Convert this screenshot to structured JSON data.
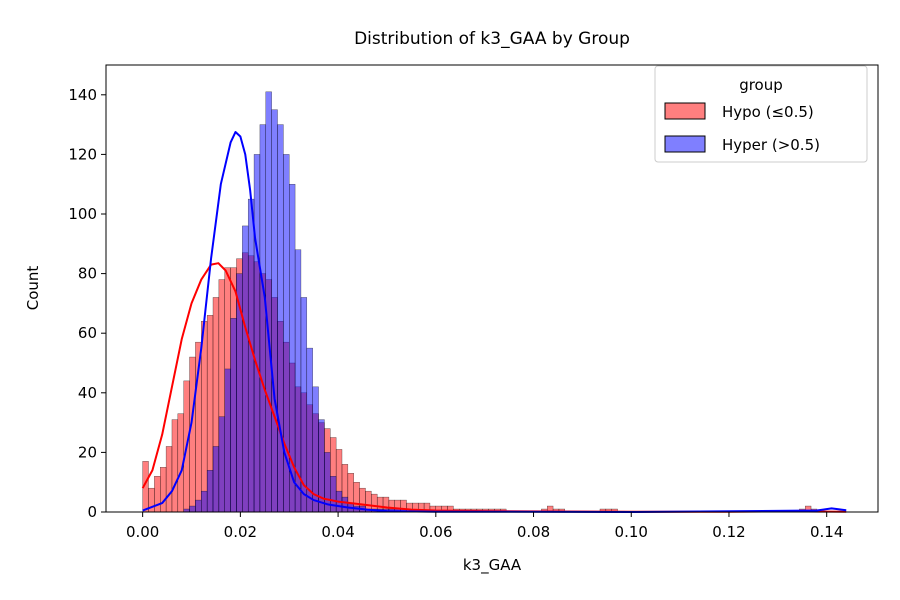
{
  "chart_data": {
    "type": "histogram",
    "title": "Distribution of k3_GAA by Group",
    "xlabel": "k3_GAA",
    "ylabel": "Count",
    "xlim": [
      -0.0075,
      0.1505
    ],
    "ylim": [
      0,
      150
    ],
    "xticks": [
      "0.00",
      "0.02",
      "0.04",
      "0.06",
      "0.08",
      "0.10",
      "0.12",
      "0.14"
    ],
    "xtick_values": [
      0,
      0.02,
      0.04,
      0.06,
      0.08,
      0.1,
      0.12,
      0.14
    ],
    "yticks": [
      "0",
      "20",
      "40",
      "60",
      "80",
      "100",
      "120",
      "140"
    ],
    "ytick_values": [
      0,
      20,
      40,
      60,
      80,
      100,
      120,
      140
    ],
    "bin_start": 0.0,
    "bin_width": 0.0012,
    "legend": {
      "title": "group",
      "position": "top-right",
      "entries": [
        "Hypo (≤0.5)",
        "Hyper (>0.5)"
      ]
    },
    "series": [
      {
        "name": "Hypo (≤0.5)",
        "bar_color": "#ff0000",
        "kde_color": "#ff0000",
        "counts": [
          17,
          8,
          12,
          15,
          22,
          31,
          33,
          44,
          52,
          57,
          64,
          66,
          72,
          78,
          82,
          82,
          85,
          87,
          86,
          84,
          80,
          78,
          72,
          64,
          57,
          50,
          42,
          40,
          36,
          33,
          30,
          28,
          25,
          21,
          16,
          13,
          10,
          8,
          7,
          6,
          5,
          5,
          4,
          4,
          4,
          3,
          3,
          3,
          3,
          2,
          2,
          2,
          2,
          1,
          1,
          1,
          1,
          1,
          1,
          1,
          1,
          1,
          0,
          0,
          0,
          0,
          0,
          0,
          1,
          2,
          1,
          1,
          0,
          0,
          0,
          0,
          0,
          0,
          1,
          1,
          1,
          0,
          0,
          0,
          0,
          0,
          0,
          0,
          0,
          0,
          0,
          0,
          0,
          0,
          0,
          0,
          0,
          0,
          0,
          0,
          0,
          0,
          0,
          0,
          0,
          0,
          0,
          0,
          0,
          0,
          0,
          0,
          1,
          2,
          1,
          0,
          0,
          0,
          0,
          0,
          0
        ],
        "kde": [
          [
            0,
            8
          ],
          [
            0.002,
            14
          ],
          [
            0.004,
            26
          ],
          [
            0.006,
            42
          ],
          [
            0.008,
            58
          ],
          [
            0.01,
            70
          ],
          [
            0.012,
            78
          ],
          [
            0.014,
            83
          ],
          [
            0.0155,
            83.5
          ],
          [
            0.017,
            81
          ],
          [
            0.019,
            74
          ],
          [
            0.021,
            62
          ],
          [
            0.023,
            51
          ],
          [
            0.025,
            41
          ],
          [
            0.027,
            32
          ],
          [
            0.029,
            23
          ],
          [
            0.031,
            15
          ],
          [
            0.033,
            9
          ],
          [
            0.035,
            6
          ],
          [
            0.037,
            4.5
          ],
          [
            0.04,
            3.5
          ],
          [
            0.045,
            2.5
          ],
          [
            0.05,
            1.5
          ],
          [
            0.055,
            0.8
          ],
          [
            0.06,
            0.5
          ],
          [
            0.07,
            0.3
          ],
          [
            0.08,
            0.2
          ],
          [
            0.1,
            0.1
          ],
          [
            0.12,
            0.1
          ],
          [
            0.132,
            0.2
          ],
          [
            0.144,
            0.1
          ]
        ]
      },
      {
        "name": "Hyper (>0.5)",
        "bar_color": "#0000ff",
        "kde_color": "#0000ff",
        "counts": [
          0,
          0,
          0,
          0,
          0,
          0,
          0,
          1,
          2,
          4,
          7,
          14,
          22,
          32,
          48,
          65,
          80,
          96,
          105,
          120,
          130,
          141,
          135,
          130,
          120,
          110,
          88,
          72,
          55,
          42,
          31,
          20,
          12,
          7,
          5,
          3,
          2,
          2,
          1,
          1,
          1,
          1,
          1,
          1,
          1,
          0,
          0,
          0,
          0,
          0,
          0,
          0,
          0,
          0,
          0,
          0,
          0,
          0,
          0,
          0,
          0,
          0,
          0,
          0,
          0,
          0,
          0,
          0,
          0,
          0,
          0,
          0,
          0,
          0,
          0,
          0,
          0,
          0,
          0,
          0,
          0,
          0,
          0,
          0,
          0,
          0,
          0,
          0,
          0,
          0,
          0,
          0,
          0,
          0,
          0,
          0,
          0,
          0,
          0,
          0,
          0,
          0,
          0,
          0,
          0,
          0,
          0,
          0,
          0,
          0,
          0,
          0,
          0,
          0,
          0,
          0,
          0,
          0,
          0,
          0
        ],
        "kde": [
          [
            0,
            0.5
          ],
          [
            0.004,
            3
          ],
          [
            0.006,
            7
          ],
          [
            0.008,
            14
          ],
          [
            0.01,
            30
          ],
          [
            0.012,
            55
          ],
          [
            0.014,
            85
          ],
          [
            0.016,
            110
          ],
          [
            0.018,
            124
          ],
          [
            0.019,
            127.5
          ],
          [
            0.02,
            126
          ],
          [
            0.021,
            120
          ],
          [
            0.022,
            108
          ],
          [
            0.023,
            92
          ],
          [
            0.025,
            72
          ],
          [
            0.026,
            55
          ],
          [
            0.027,
            38
          ],
          [
            0.029,
            20
          ],
          [
            0.031,
            10
          ],
          [
            0.033,
            6
          ],
          [
            0.035,
            4
          ],
          [
            0.038,
            2.5
          ],
          [
            0.042,
            1.5
          ],
          [
            0.046,
            0.8
          ],
          [
            0.05,
            0.3
          ],
          [
            0.06,
            0.1
          ],
          [
            0.1,
            0
          ],
          [
            0.138,
            0.5
          ],
          [
            0.141,
            1.2
          ],
          [
            0.144,
            0.6
          ]
        ]
      }
    ]
  }
}
